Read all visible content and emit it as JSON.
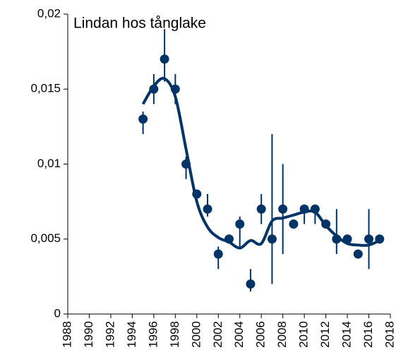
{
  "chart_data": {
    "type": "scatter",
    "title": "Lindan hos tånglake",
    "xlim": [
      1988,
      2018
    ],
    "xticks": [
      1988,
      1990,
      1992,
      1994,
      1996,
      1998,
      2000,
      2002,
      2004,
      2006,
      2008,
      2010,
      2012,
      2014,
      2016,
      2018
    ],
    "ylim": [
      0,
      0.02
    ],
    "yticks": [
      0,
      {
        "value": 0.005,
        "label": "0,005"
      },
      {
        "value": 0.01,
        "label": "0,01"
      },
      {
        "value": 0.015,
        "label": "0,015"
      },
      {
        "value": 0.02,
        "label": "0,02"
      }
    ],
    "grid": false,
    "series": [
      {
        "kind": "points",
        "color": "#003366",
        "x": [
          1995,
          1996,
          1997,
          1998,
          1999,
          2000,
          2001,
          2002,
          2003,
          2004,
          2005,
          2006,
          2007,
          2008,
          2009,
          2010,
          2011,
          2012,
          2013,
          2014,
          2015,
          2016,
          2017
        ],
        "values": [
          0.013,
          0.015,
          0.017,
          0.015,
          0.01,
          0.008,
          0.007,
          0.004,
          0.005,
          0.006,
          0.002,
          0.007,
          0.005,
          0.007,
          0.006,
          0.007,
          0.007,
          0.006,
          0.005,
          0.005,
          0.004,
          0.005,
          0.005
        ],
        "lower": [
          0.012,
          0.014,
          0.0155,
          0.014,
          0.009,
          null,
          0.0065,
          0.003,
          null,
          0.0045,
          0.0015,
          0.006,
          0.002,
          0.004,
          null,
          0.006,
          0.006,
          null,
          0.004,
          null,
          null,
          0.003,
          null
        ],
        "upper": [
          0.0135,
          0.016,
          0.019,
          0.016,
          0.0105,
          null,
          0.008,
          0.0045,
          null,
          0.0065,
          0.003,
          0.008,
          0.012,
          0.01,
          null,
          0.007,
          0.007,
          null,
          0.007,
          null,
          null,
          0.007,
          null
        ]
      },
      {
        "kind": "smooth",
        "color": "#003366",
        "x": [
          1995,
          1996,
          1997,
          1998,
          1999,
          2000,
          2001,
          2002,
          2003,
          2004,
          2005,
          2006,
          2007,
          2008,
          2009,
          2010,
          2011,
          2012,
          2013,
          2014,
          2015,
          2016,
          2017
        ],
        "values": [
          0.014,
          0.0152,
          0.0157,
          0.0145,
          0.011,
          0.0075,
          0.0058,
          0.0051,
          0.0048,
          0.0044,
          0.0049,
          0.0047,
          0.0062,
          0.0064,
          0.0066,
          0.0068,
          0.0068,
          0.0059,
          0.0052,
          0.0047,
          0.0046,
          0.0046,
          0.0049
        ]
      }
    ]
  }
}
